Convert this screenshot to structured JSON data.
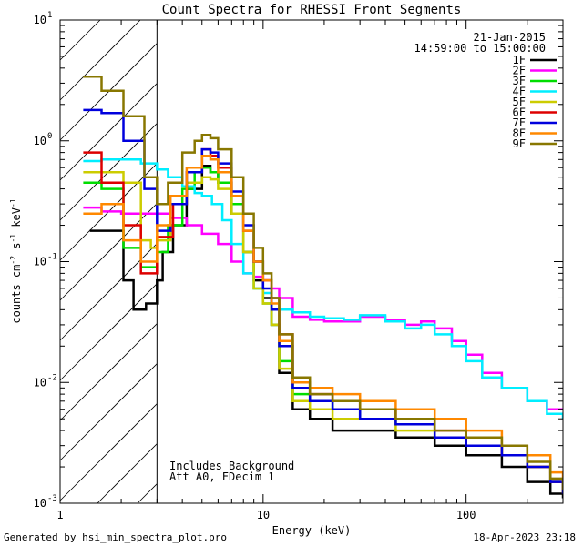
{
  "chart_data": {
    "type": "line",
    "title": "Count Spectra for RHESSI Front Segments",
    "xlabel": "Energy (keV)",
    "ylabel_parts": {
      "a": "counts cm",
      "b": "-2",
      "c": " s",
      "d": "-1",
      "e": " keV",
      "f": "-1"
    },
    "xscale": "log",
    "yscale": "log",
    "xlim": [
      1,
      300
    ],
    "ylim": [
      0.001,
      10
    ],
    "x_ticks": [
      {
        "value": 1,
        "label": "1"
      },
      {
        "value": 10,
        "label": "10"
      },
      {
        "value": 100,
        "label": "100"
      }
    ],
    "y_ticks": [
      {
        "value": 0.001,
        "base": "10",
        "exp": "-3"
      },
      {
        "value": 0.01,
        "base": "10",
        "exp": "-2"
      },
      {
        "value": 0.1,
        "base": "10",
        "exp": "-1"
      },
      {
        "value": 1,
        "base": "10",
        "exp": "0"
      },
      {
        "value": 10,
        "base": "10",
        "exp": "1"
      }
    ],
    "shaded_region": {
      "x_from": 1,
      "x_to": 3,
      "style": "hatched"
    },
    "legend": {
      "date": "21-Jan-2015",
      "time_range": "14:59:00 to 15:00:00",
      "placement": "top-right"
    },
    "annotations": [
      "Includes Background",
      "Att A0, FDecim 1"
    ],
    "series": [
      {
        "name": "1F",
        "color": "#000000",
        "points": [
          [
            1.4,
            0.18
          ],
          [
            2.05,
            0.07
          ],
          [
            2.3,
            0.04
          ],
          [
            2.65,
            0.045
          ],
          [
            3.0,
            0.07
          ],
          [
            3.2,
            0.12
          ],
          [
            3.6,
            0.2
          ],
          [
            4.2,
            0.4
          ],
          [
            5.0,
            0.62
          ],
          [
            5.5,
            0.55
          ],
          [
            6.0,
            0.45
          ],
          [
            7.0,
            0.25
          ],
          [
            8.0,
            0.12
          ],
          [
            9.0,
            0.07
          ],
          [
            10,
            0.05
          ],
          [
            11,
            0.03
          ],
          [
            12,
            0.012
          ],
          [
            14,
            0.006
          ],
          [
            17,
            0.005
          ],
          [
            22,
            0.004
          ],
          [
            30,
            0.004
          ],
          [
            45,
            0.0035
          ],
          [
            70,
            0.003
          ],
          [
            100,
            0.0025
          ],
          [
            150,
            0.002
          ],
          [
            200,
            0.0015
          ],
          [
            260,
            0.0012
          ],
          [
            300,
            0.0011
          ]
        ]
      },
      {
        "name": "2F",
        "color": "#ff00ff",
        "points": [
          [
            1.3,
            0.28
          ],
          [
            1.6,
            0.26
          ],
          [
            2.0,
            0.25
          ],
          [
            2.5,
            0.25
          ],
          [
            3.0,
            0.25
          ],
          [
            3.5,
            0.23
          ],
          [
            4.2,
            0.2
          ],
          [
            5.0,
            0.17
          ],
          [
            6.0,
            0.14
          ],
          [
            7.0,
            0.1
          ],
          [
            8.0,
            0.08
          ],
          [
            9.0,
            0.075
          ],
          [
            10,
            0.07
          ],
          [
            11,
            0.06
          ],
          [
            12,
            0.05
          ],
          [
            14,
            0.035
          ],
          [
            17,
            0.033
          ],
          [
            20,
            0.032
          ],
          [
            25,
            0.032
          ],
          [
            30,
            0.035
          ],
          [
            40,
            0.033
          ],
          [
            50,
            0.03
          ],
          [
            60,
            0.032
          ],
          [
            70,
            0.028
          ],
          [
            85,
            0.022
          ],
          [
            100,
            0.017
          ],
          [
            120,
            0.012
          ],
          [
            150,
            0.009
          ],
          [
            200,
            0.007
          ],
          [
            250,
            0.006
          ],
          [
            300,
            0.006
          ]
        ]
      },
      {
        "name": "3F",
        "color": "#00dd00",
        "points": [
          [
            1.3,
            0.45
          ],
          [
            1.6,
            0.4
          ],
          [
            2.05,
            0.13
          ],
          [
            2.5,
            0.09
          ],
          [
            3.0,
            0.12
          ],
          [
            3.4,
            0.2
          ],
          [
            4.0,
            0.4
          ],
          [
            4.6,
            0.55
          ],
          [
            5.0,
            0.6
          ],
          [
            5.5,
            0.55
          ],
          [
            6.0,
            0.45
          ],
          [
            7.0,
            0.3
          ],
          [
            8.0,
            0.12
          ],
          [
            9.0,
            0.06
          ],
          [
            10,
            0.045
          ],
          [
            11,
            0.03
          ],
          [
            12,
            0.015
          ],
          [
            14,
            0.008
          ],
          [
            17,
            0.007
          ],
          [
            22,
            0.006
          ],
          [
            30,
            0.005
          ],
          [
            45,
            0.0045
          ],
          [
            70,
            0.0035
          ],
          [
            100,
            0.003
          ],
          [
            150,
            0.0025
          ],
          [
            200,
            0.002
          ],
          [
            260,
            0.0015
          ],
          [
            300,
            0.0012
          ]
        ]
      },
      {
        "name": "4F",
        "color": "#00eeff",
        "points": [
          [
            1.3,
            0.68
          ],
          [
            1.6,
            0.7
          ],
          [
            2.0,
            0.7
          ],
          [
            2.5,
            0.65
          ],
          [
            3.0,
            0.58
          ],
          [
            3.4,
            0.5
          ],
          [
            4.0,
            0.42
          ],
          [
            4.6,
            0.37
          ],
          [
            5.0,
            0.35
          ],
          [
            5.6,
            0.3
          ],
          [
            6.3,
            0.22
          ],
          [
            7.0,
            0.14
          ],
          [
            8.0,
            0.08
          ],
          [
            9.0,
            0.06
          ],
          [
            10,
            0.055
          ],
          [
            11,
            0.05
          ],
          [
            12,
            0.04
          ],
          [
            14,
            0.038
          ],
          [
            17,
            0.035
          ],
          [
            20,
            0.034
          ],
          [
            25,
            0.033
          ],
          [
            30,
            0.036
          ],
          [
            40,
            0.032
          ],
          [
            50,
            0.028
          ],
          [
            60,
            0.03
          ],
          [
            70,
            0.025
          ],
          [
            85,
            0.02
          ],
          [
            100,
            0.015
          ],
          [
            120,
            0.011
          ],
          [
            150,
            0.009
          ],
          [
            200,
            0.007
          ],
          [
            250,
            0.0055
          ],
          [
            300,
            0.005
          ]
        ]
      },
      {
        "name": "5F",
        "color": "#cccc00",
        "points": [
          [
            1.3,
            0.55
          ],
          [
            1.6,
            0.55
          ],
          [
            2.05,
            0.45
          ],
          [
            2.5,
            0.15
          ],
          [
            2.8,
            0.13
          ],
          [
            3.0,
            0.15
          ],
          [
            3.5,
            0.3
          ],
          [
            4.2,
            0.45
          ],
          [
            5.0,
            0.5
          ],
          [
            5.5,
            0.48
          ],
          [
            6.0,
            0.4
          ],
          [
            7.0,
            0.25
          ],
          [
            8.0,
            0.12
          ],
          [
            9.0,
            0.06
          ],
          [
            10,
            0.045
          ],
          [
            11,
            0.03
          ],
          [
            12,
            0.013
          ],
          [
            14,
            0.007
          ],
          [
            17,
            0.006
          ],
          [
            22,
            0.005
          ],
          [
            30,
            0.005
          ],
          [
            45,
            0.004
          ],
          [
            70,
            0.0035
          ],
          [
            100,
            0.003
          ],
          [
            150,
            0.0025
          ],
          [
            200,
            0.002
          ],
          [
            260,
            0.0015
          ],
          [
            300,
            0.0012
          ]
        ]
      },
      {
        "name": "6F",
        "color": "#dd0000",
        "points": [
          [
            1.3,
            0.8
          ],
          [
            1.6,
            0.45
          ],
          [
            2.05,
            0.2
          ],
          [
            2.5,
            0.08
          ],
          [
            3.0,
            0.16
          ],
          [
            3.6,
            0.3
          ],
          [
            4.2,
            0.55
          ],
          [
            5.0,
            0.85
          ],
          [
            5.5,
            0.75
          ],
          [
            6.0,
            0.6
          ],
          [
            7.0,
            0.35
          ],
          [
            8.0,
            0.18
          ],
          [
            9.0,
            0.1
          ],
          [
            10,
            0.07
          ],
          [
            11,
            0.05
          ],
          [
            12,
            0.025
          ],
          [
            14,
            0.01
          ],
          [
            17,
            0.008
          ],
          [
            22,
            0.007
          ],
          [
            30,
            0.006
          ],
          [
            45,
            0.005
          ],
          [
            70,
            0.004
          ],
          [
            100,
            0.003
          ],
          [
            150,
            0.0025
          ],
          [
            200,
            0.002
          ],
          [
            260,
            0.0015
          ],
          [
            300,
            0.0012
          ]
        ]
      },
      {
        "name": "7F",
        "color": "#0000dd",
        "points": [
          [
            1.3,
            1.8
          ],
          [
            1.6,
            1.7
          ],
          [
            2.05,
            1.0
          ],
          [
            2.6,
            0.4
          ],
          [
            3.0,
            0.18
          ],
          [
            3.5,
            0.3
          ],
          [
            4.2,
            0.55
          ],
          [
            5.0,
            0.85
          ],
          [
            5.5,
            0.8
          ],
          [
            6.0,
            0.65
          ],
          [
            7.0,
            0.38
          ],
          [
            8.0,
            0.2
          ],
          [
            9.0,
            0.1
          ],
          [
            10,
            0.06
          ],
          [
            11,
            0.04
          ],
          [
            12,
            0.02
          ],
          [
            14,
            0.009
          ],
          [
            17,
            0.007
          ],
          [
            22,
            0.006
          ],
          [
            30,
            0.005
          ],
          [
            45,
            0.0045
          ],
          [
            70,
            0.0035
          ],
          [
            100,
            0.003
          ],
          [
            150,
            0.0025
          ],
          [
            200,
            0.002
          ],
          [
            260,
            0.0015
          ],
          [
            300,
            0.0012
          ]
        ]
      },
      {
        "name": "8F",
        "color": "#ff8800",
        "points": [
          [
            1.3,
            0.25
          ],
          [
            1.6,
            0.3
          ],
          [
            2.05,
            0.15
          ],
          [
            2.5,
            0.1
          ],
          [
            3.0,
            0.2
          ],
          [
            3.5,
            0.35
          ],
          [
            4.2,
            0.6
          ],
          [
            5.0,
            0.75
          ],
          [
            5.5,
            0.7
          ],
          [
            6.0,
            0.55
          ],
          [
            7.0,
            0.35
          ],
          [
            8.0,
            0.18
          ],
          [
            9.0,
            0.1
          ],
          [
            10,
            0.07
          ],
          [
            11,
            0.045
          ],
          [
            12,
            0.022
          ],
          [
            14,
            0.01
          ],
          [
            17,
            0.009
          ],
          [
            22,
            0.008
          ],
          [
            30,
            0.007
          ],
          [
            45,
            0.006
          ],
          [
            70,
            0.005
          ],
          [
            100,
            0.004
          ],
          [
            150,
            0.003
          ],
          [
            200,
            0.0025
          ],
          [
            260,
            0.0018
          ],
          [
            300,
            0.0015
          ]
        ]
      },
      {
        "name": "9F",
        "color": "#887700",
        "points": [
          [
            1.3,
            3.4
          ],
          [
            1.6,
            2.6
          ],
          [
            2.05,
            1.6
          ],
          [
            2.6,
            0.5
          ],
          [
            3.0,
            0.3
          ],
          [
            3.4,
            0.45
          ],
          [
            4.0,
            0.8
          ],
          [
            4.6,
            1.0
          ],
          [
            5.0,
            1.12
          ],
          [
            5.5,
            1.05
          ],
          [
            6.0,
            0.85
          ],
          [
            7.0,
            0.5
          ],
          [
            8.0,
            0.25
          ],
          [
            9.0,
            0.13
          ],
          [
            10,
            0.08
          ],
          [
            11,
            0.05
          ],
          [
            12,
            0.025
          ],
          [
            14,
            0.011
          ],
          [
            17,
            0.008
          ],
          [
            22,
            0.007
          ],
          [
            30,
            0.006
          ],
          [
            45,
            0.005
          ],
          [
            70,
            0.004
          ],
          [
            100,
            0.0035
          ],
          [
            150,
            0.003
          ],
          [
            200,
            0.0022
          ],
          [
            260,
            0.0016
          ],
          [
            300,
            0.0013
          ]
        ]
      }
    ]
  },
  "footer": {
    "left": "Generated by hsi_min_spectra_plot.pro",
    "right": "18-Apr-2023 23:18"
  }
}
